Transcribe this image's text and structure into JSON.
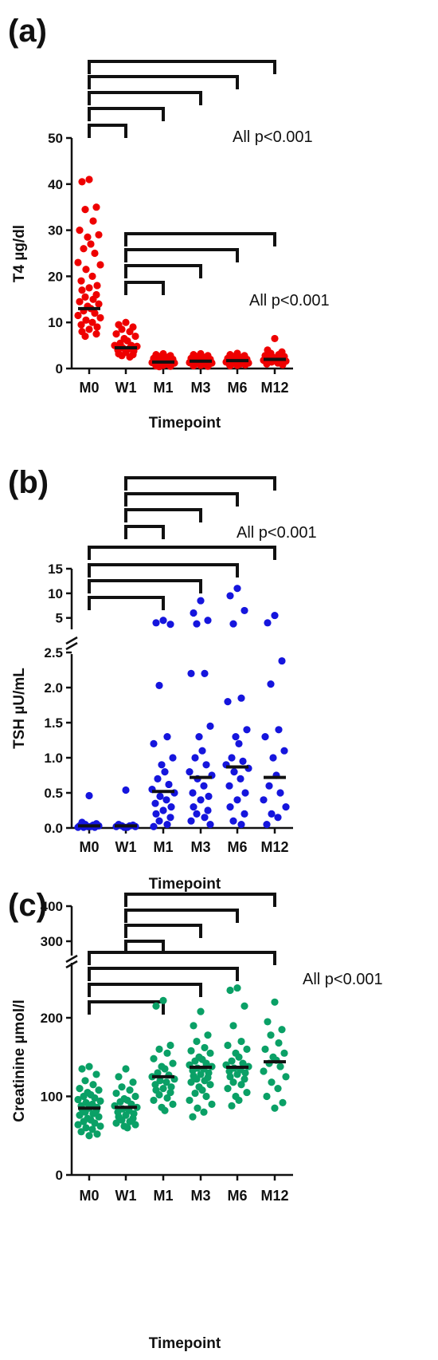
{
  "chart_data": [
    {
      "panel": "(a)",
      "type": "scatter",
      "ylabel": "T4 µg/dl",
      "xlabel": "Timepoint",
      "categories": [
        "M0",
        "W1",
        "M1",
        "M3",
        "M6",
        "M12"
      ],
      "ylim": [
        0,
        50
      ],
      "yticks": [
        0,
        10,
        20,
        30,
        40,
        50
      ],
      "color": "#ee0000",
      "medians": [
        13.0,
        4.5,
        1.4,
        1.6,
        1.7,
        2.0
      ],
      "points": [
        [
          41.0,
          40.5,
          35,
          34.5,
          32,
          30,
          29,
          28.5,
          27,
          26,
          25,
          23,
          22.5,
          21.5,
          20,
          19,
          18,
          17.5,
          17,
          16,
          15.5,
          15,
          14.5,
          14,
          13.5,
          13,
          12.5,
          12,
          11.5,
          11,
          10.5,
          10,
          9.5,
          9,
          8.5,
          8,
          7.5,
          7
        ],
        [
          10,
          9.5,
          9,
          8.5,
          8,
          7.5,
          7,
          6.5,
          6,
          5.5,
          5,
          5,
          4.8,
          4.5,
          4.3,
          4,
          3.8,
          3.5,
          3.2,
          3,
          2.8,
          2.5
        ],
        [
          3.2,
          3,
          2.8,
          2.6,
          2.4,
          2.2,
          2,
          1.8,
          1.6,
          1.5,
          1.4,
          1.3,
          1.2,
          1.1,
          1,
          0.9,
          0.8,
          0.7,
          0.6,
          0.5,
          0.4
        ],
        [
          3.2,
          3,
          2.8,
          2.6,
          2.4,
          2.2,
          2,
          1.8,
          1.6,
          1.5,
          1.4,
          1.3,
          1.2,
          1.1,
          1,
          0.9,
          0.8,
          0.7,
          0.6,
          0.5
        ],
        [
          3.3,
          3,
          2.8,
          2.6,
          2.4,
          2.2,
          2,
          1.9,
          1.7,
          1.6,
          1.5,
          1.4,
          1.2,
          1.1,
          1,
          0.9,
          0.8,
          0.7,
          0.6
        ],
        [
          6.5,
          4,
          3.6,
          3.3,
          3,
          2.8,
          2.6,
          2.4,
          2.2,
          2,
          1.9,
          1.8,
          1.6,
          1.4,
          1.2,
          1,
          0.8
        ]
      ],
      "brackets": [
        {
          "from": "M0",
          "to": "W1"
        },
        {
          "from": "M0",
          "to": "M1"
        },
        {
          "from": "M0",
          "to": "M3"
        },
        {
          "from": "M0",
          "to": "M6"
        },
        {
          "from": "M0",
          "to": "M12"
        },
        {
          "from": "W1",
          "to": "M1"
        },
        {
          "from": "W1",
          "to": "M3"
        },
        {
          "from": "W1",
          "to": "M6"
        },
        {
          "from": "W1",
          "to": "M12"
        }
      ],
      "annotations": [
        "All p<0.001",
        "All p<0.001"
      ]
    },
    {
      "panel": "(b)",
      "type": "scatter",
      "ylabel": "TSH µU/mL",
      "xlabel": "Timepoint",
      "categories": [
        "M0",
        "W1",
        "M1",
        "M3",
        "M6",
        "M12"
      ],
      "ylim": [
        0,
        15
      ],
      "axis_break": [
        2.5,
        3
      ],
      "yticks_lower": [
        0.0,
        0.5,
        1.0,
        1.5,
        2.0,
        2.5
      ],
      "yticks_upper": [
        5,
        10,
        15
      ],
      "color": "#1515dd",
      "medians": [
        0.03,
        0.03,
        0.52,
        0.72,
        0.87,
        0.72
      ],
      "points": [
        [
          0.46,
          0.08,
          0.06,
          0.05,
          0.04,
          0.03,
          0.03,
          0.02,
          0.02,
          0.01,
          0.01,
          0.01
        ],
        [
          0.54,
          0.05,
          0.04,
          0.03,
          0.03,
          0.02,
          0.02,
          0.01,
          0.01
        ],
        [
          4.5,
          4.0,
          3.7,
          2.03,
          1.3,
          1.2,
          1.0,
          0.9,
          0.8,
          0.7,
          0.62,
          0.55,
          0.5,
          0.45,
          0.4,
          0.35,
          0.3,
          0.25,
          0.2,
          0.15,
          0.1,
          0.05,
          0.02
        ],
        [
          8.5,
          6.0,
          4.5,
          3.8,
          2.2,
          2.2,
          1.45,
          1.3,
          1.1,
          1.0,
          0.9,
          0.8,
          0.75,
          0.7,
          0.6,
          0.5,
          0.45,
          0.4,
          0.3,
          0.25,
          0.2,
          0.15,
          0.1,
          0.05
        ],
        [
          11,
          9.5,
          6.5,
          3.8,
          1.85,
          1.8,
          1.4,
          1.3,
          1.2,
          1.0,
          0.95,
          0.9,
          0.85,
          0.8,
          0.7,
          0.6,
          0.5,
          0.4,
          0.3,
          0.2,
          0.1,
          0.05
        ],
        [
          5.5,
          4.0,
          2.38,
          2.05,
          1.4,
          1.3,
          1.1,
          1.0,
          0.75,
          0.6,
          0.5,
          0.4,
          0.3,
          0.2,
          0.15,
          0.05
        ]
      ],
      "brackets": [
        {
          "from": "M0",
          "to": "M1"
        },
        {
          "from": "M0",
          "to": "M3"
        },
        {
          "from": "M0",
          "to": "M6"
        },
        {
          "from": "M0",
          "to": "M12"
        },
        {
          "from": "W1",
          "to": "M1"
        },
        {
          "from": "W1",
          "to": "M3"
        },
        {
          "from": "W1",
          "to": "M6"
        },
        {
          "from": "W1",
          "to": "M12"
        }
      ],
      "annotations": [
        "All p<0.001"
      ]
    },
    {
      "panel": "(c)",
      "type": "scatter",
      "ylabel": "Creatinine µmol/l",
      "xlabel": "Timepoint",
      "categories": [
        "M0",
        "W1",
        "M1",
        "M3",
        "M6",
        "M12"
      ],
      "ylim": [
        0,
        400
      ],
      "axis_break": [
        250,
        280
      ],
      "yticks_lower": [
        0,
        100,
        200
      ],
      "yticks_upper": [
        300,
        400
      ],
      "color": "#0aa066",
      "medians": [
        85,
        86,
        125,
        137,
        137,
        144
      ],
      "points": [
        [
          138,
          135,
          128,
          120,
          115,
          110,
          108,
          105,
          102,
          100,
          98,
          96,
          94,
          92,
          90,
          88,
          86,
          85,
          84,
          82,
          80,
          78,
          76,
          74,
          72,
          70,
          68,
          66,
          64,
          62,
          60,
          58,
          55,
          52,
          50
        ],
        [
          135,
          125,
          118,
          112,
          108,
          104,
          100,
          97,
          95,
          93,
          90,
          88,
          86,
          84,
          82,
          80,
          78,
          76,
          74,
          72,
          70,
          68,
          66,
          64,
          62,
          60
        ],
        [
          222,
          215,
          165,
          160,
          155,
          148,
          142,
          138,
          135,
          130,
          127,
          125,
          122,
          120,
          118,
          115,
          112,
          110,
          108,
          105,
          102,
          98,
          95,
          90,
          86,
          82
        ],
        [
          208,
          190,
          178,
          170,
          162,
          158,
          155,
          150,
          147,
          145,
          142,
          140,
          138,
          136,
          135,
          133,
          130,
          128,
          126,
          124,
          122,
          120,
          118,
          115,
          112,
          108,
          104,
          100,
          95,
          90,
          85,
          80,
          74
        ],
        [
          238,
          235,
          215,
          190,
          170,
          165,
          160,
          155,
          150,
          145,
          142,
          140,
          138,
          136,
          134,
          132,
          130,
          128,
          125,
          122,
          118,
          115,
          110,
          105,
          100,
          95,
          88
        ],
        [
          220,
          195,
          185,
          178,
          168,
          160,
          155,
          150,
          146,
          142,
          138,
          132,
          125,
          118,
          110,
          100,
          92,
          85
        ]
      ],
      "brackets": [
        {
          "from": "M0",
          "to": "M1"
        },
        {
          "from": "M0",
          "to": "M3"
        },
        {
          "from": "M0",
          "to": "M6"
        },
        {
          "from": "M0",
          "to": "M12"
        },
        {
          "from": "W1",
          "to": "M1"
        },
        {
          "from": "W1",
          "to": "M3"
        },
        {
          "from": "W1",
          "to": "M6"
        },
        {
          "from": "W1",
          "to": "M12"
        }
      ],
      "annotations": [
        "All p<0.001"
      ]
    }
  ]
}
